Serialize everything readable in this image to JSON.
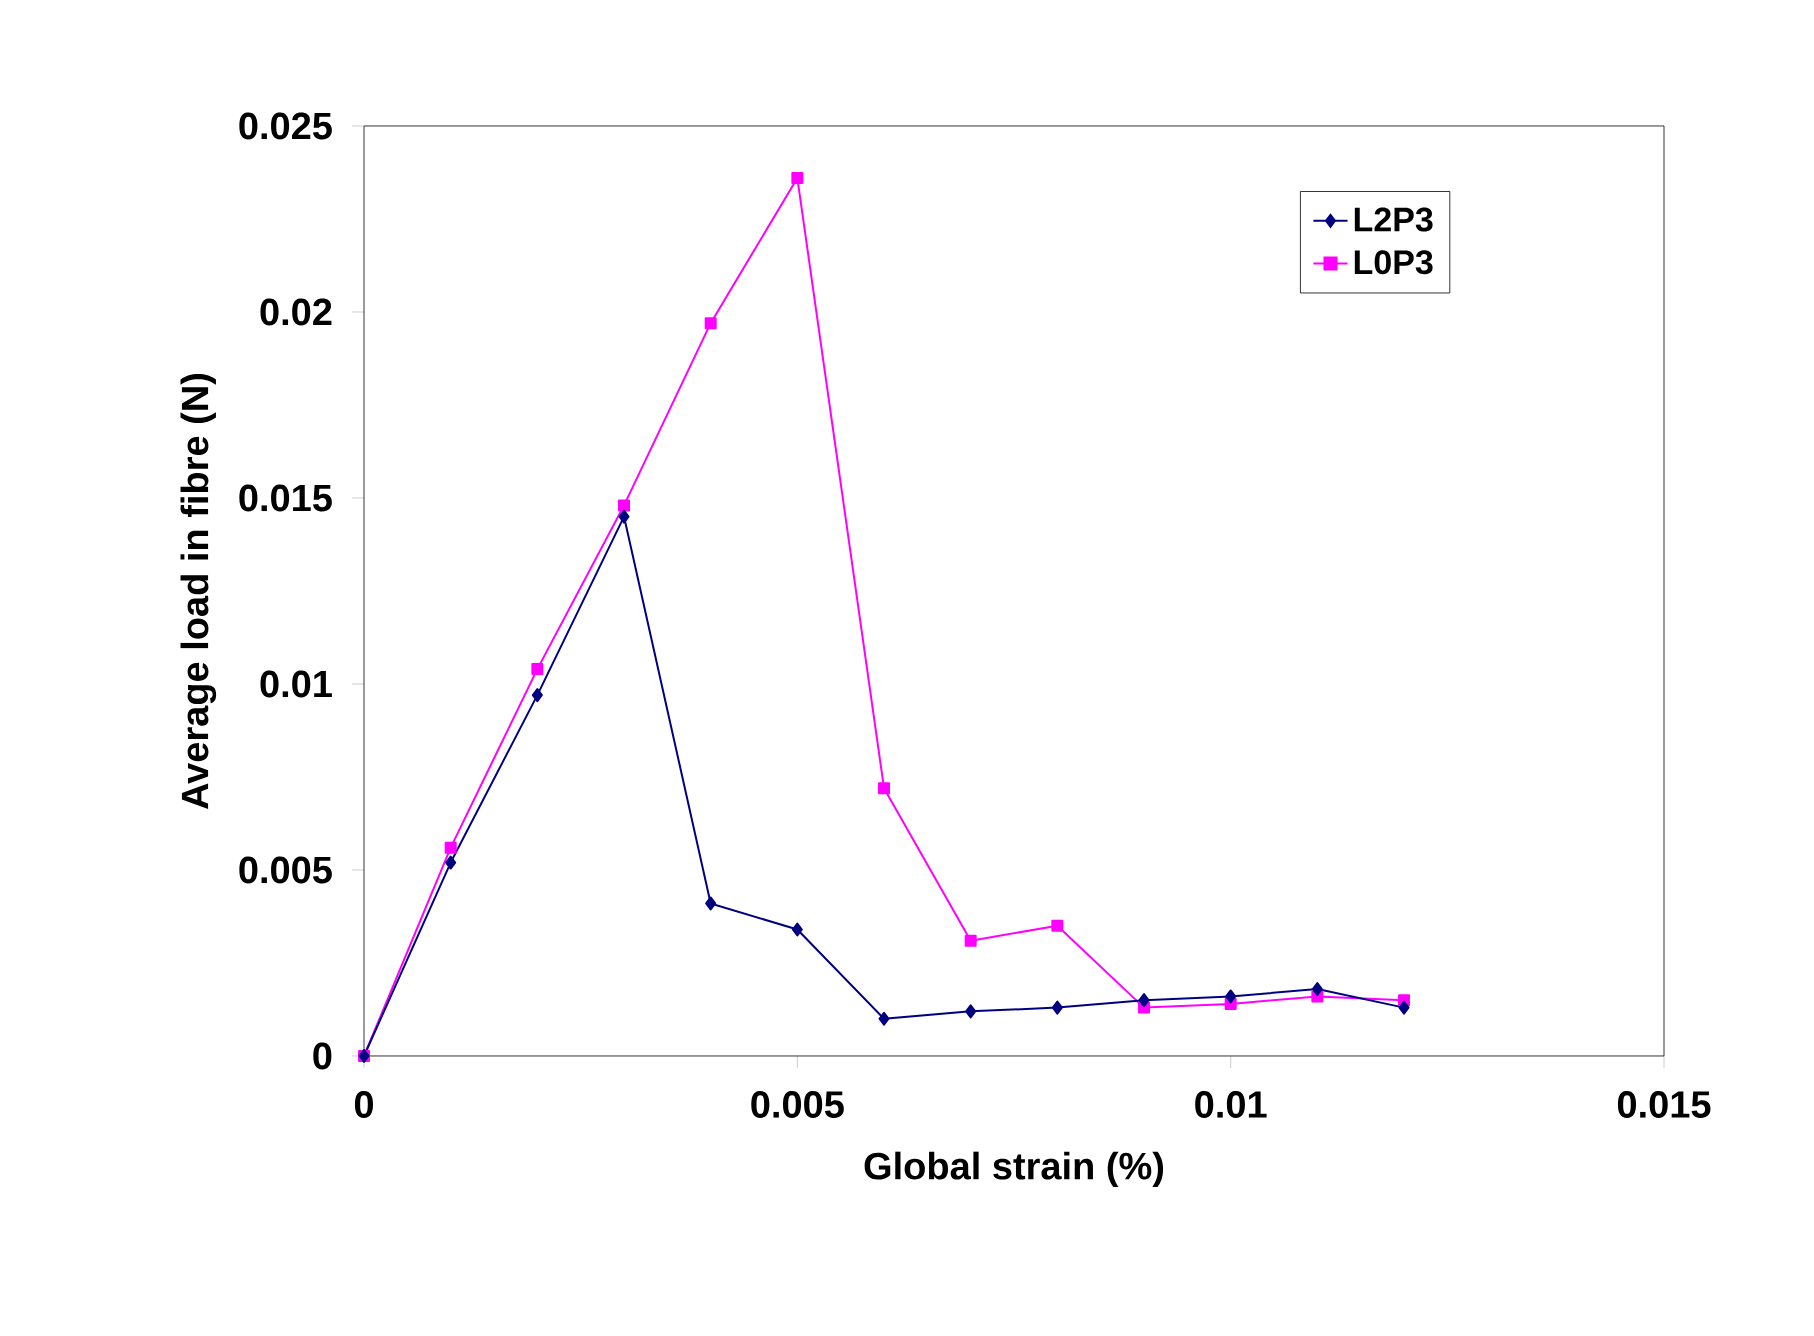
{
  "chart_data": {
    "type": "line",
    "xlabel": "Global strain (%)",
    "ylabel": "Average load in fibre (N)",
    "xlim": [
      0,
      0.015
    ],
    "xticks": [
      0,
      0.005,
      0.01,
      0.015
    ],
    "ylim": [
      0,
      0.025
    ],
    "yticks": [
      0,
      0.005,
      0.01,
      0.015,
      0.02,
      0.025
    ],
    "x": [
      0,
      0.001,
      0.002,
      0.003,
      0.004,
      0.005,
      0.006,
      0.007,
      0.008,
      0.009,
      0.01,
      0.011,
      0.012
    ],
    "legend": "top right",
    "grid": false,
    "line_style": "solid",
    "series": [
      {
        "name": "L2P3",
        "color": "#000080",
        "marker": "diamond",
        "values": [
          0,
          0.0052,
          0.0097,
          0.0145,
          0.0041,
          0.0034,
          0.001,
          0.0012,
          0.0013,
          0.0015,
          0.0016,
          0.0018,
          0.0013
        ]
      },
      {
        "name": "L0P3",
        "color": "#ff00ff",
        "marker": "square",
        "values": [
          0,
          0.0056,
          0.0104,
          0.0148,
          0.0197,
          0.0236,
          0.0072,
          0.0031,
          0.0035,
          0.0013,
          0.0014,
          0.0016,
          0.0015
        ]
      }
    ]
  }
}
